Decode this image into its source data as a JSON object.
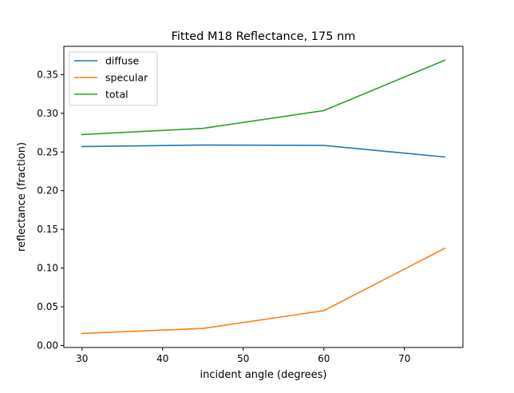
{
  "chart_data": {
    "type": "line",
    "title": "Fitted M18 Reflectance, 175 nm",
    "xlabel": "incident angle (degrees)",
    "ylabel": "reflectance (fraction)",
    "x": [
      30,
      45,
      60,
      75
    ],
    "xlim": [
      27.75,
      77.25
    ],
    "ylim": [
      -0.0026,
      0.3865
    ],
    "xticks": [
      30,
      40,
      50,
      60,
      70
    ],
    "yticks": [
      0.0,
      0.05,
      0.1,
      0.15,
      0.2,
      0.25,
      0.3,
      0.35
    ],
    "xtick_labels": [
      "30",
      "40",
      "50",
      "60",
      "70"
    ],
    "ytick_labels": [
      "0.00",
      "0.05",
      "0.10",
      "0.15",
      "0.20",
      "0.25",
      "0.30",
      "0.35"
    ],
    "grid": false,
    "legend_position": "top-left",
    "series": [
      {
        "name": "diffuse",
        "color": "#1f77b4",
        "values": [
          0.257,
          0.259,
          0.2585,
          0.2435
        ]
      },
      {
        "name": "specular",
        "color": "#ff7f0e",
        "values": [
          0.0155,
          0.022,
          0.045,
          0.1255
        ]
      },
      {
        "name": "total",
        "color": "#2ca02c",
        "values": [
          0.2725,
          0.2805,
          0.3035,
          0.3685
        ]
      }
    ]
  }
}
